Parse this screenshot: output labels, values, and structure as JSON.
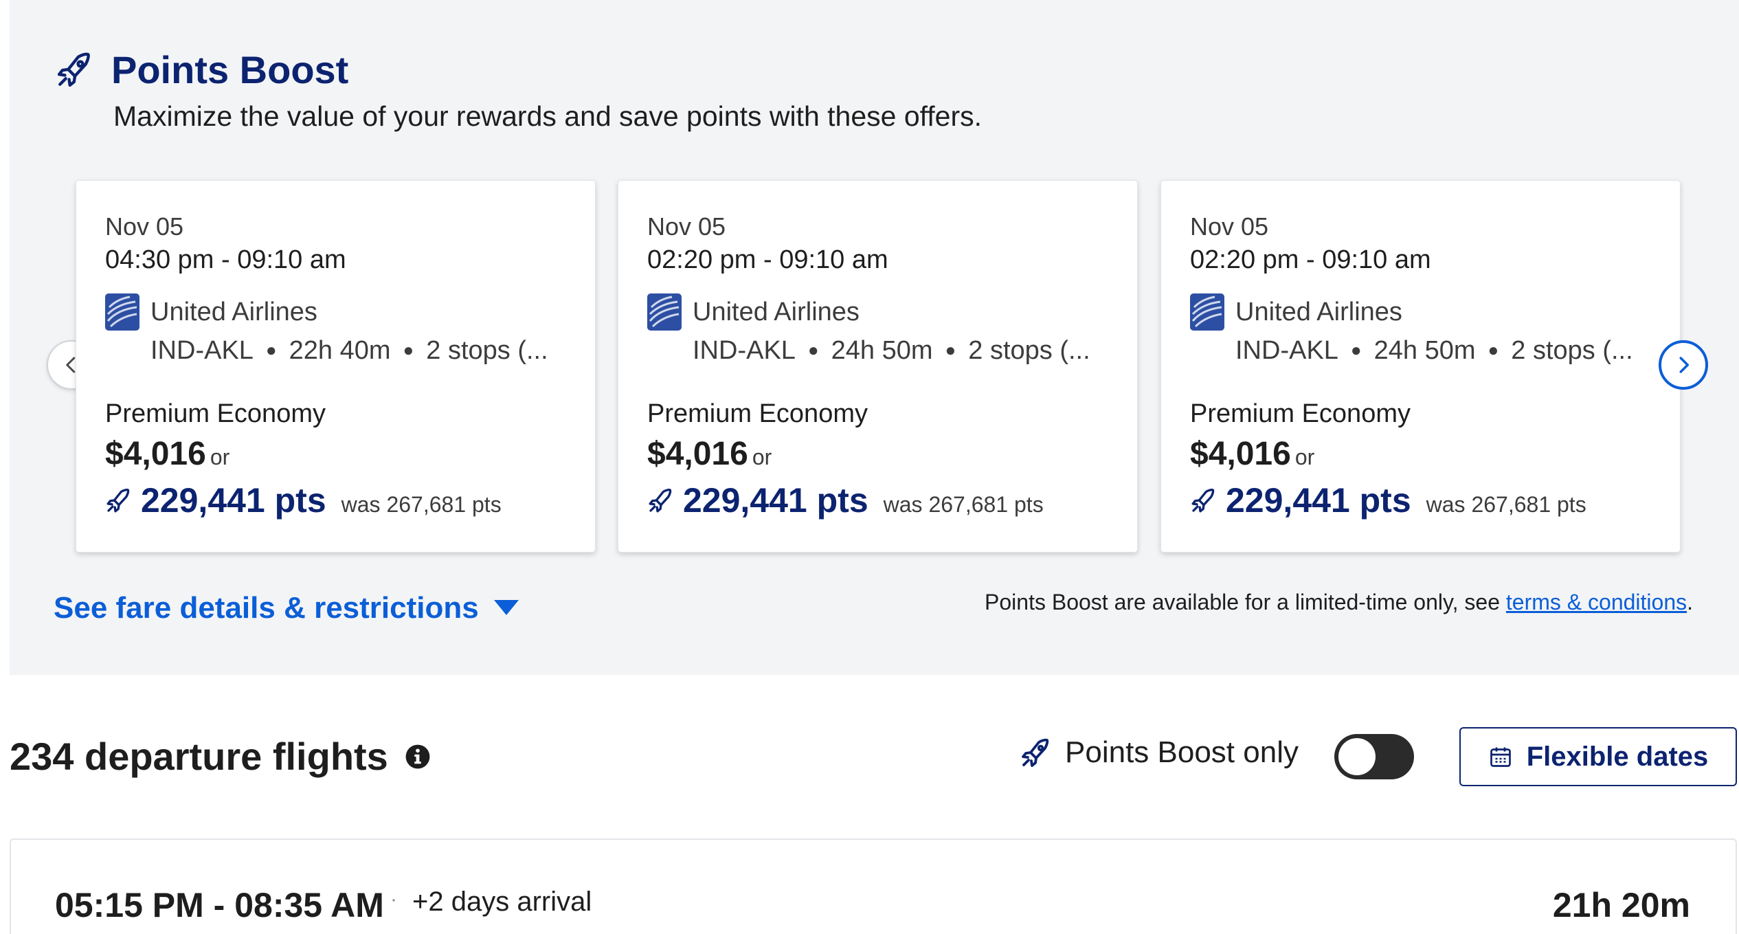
{
  "points_boost": {
    "title": "Points Boost",
    "subtitle": "Maximize the value of your rewards and save points with these offers.",
    "icon": "rocket-icon",
    "cards": [
      {
        "date": "Nov 05",
        "times": "04:30 pm - 09:10 am",
        "airline": "United Airlines",
        "route": "IND-AKL",
        "duration": "22h 40m",
        "stops": "2 stops (...",
        "cabin": "Premium Economy",
        "price": "$4,016",
        "or": "or",
        "points": "229,441 pts",
        "was": "was 267,681 pts"
      },
      {
        "date": "Nov 05",
        "times": "02:20 pm - 09:10 am",
        "airline": "United Airlines",
        "route": "IND-AKL",
        "duration": "24h 50m",
        "stops": "2 stops (...",
        "cabin": "Premium Economy",
        "price": "$4,016",
        "or": "or",
        "points": "229,441 pts",
        "was": "was 267,681 pts"
      },
      {
        "date": "Nov 05",
        "times": "02:20 pm - 09:10 am",
        "airline": "United Airlines",
        "route": "IND-AKL",
        "duration": "24h 50m",
        "stops": "2 stops (...",
        "cabin": "Premium Economy",
        "price": "$4,016",
        "or": "or",
        "points": "229,441 pts",
        "was": "was 267,681 pts"
      }
    ],
    "fare_details_link": "See fare details & restrictions",
    "disclaimer_text": "Points Boost are available for a limited-time only, see ",
    "terms_link": "terms & conditions",
    "disclaimer_end": "."
  },
  "results": {
    "count_label": "234 departure flights",
    "boost_only_label": "Points Boost only",
    "boost_only_toggle": "off",
    "flexible_dates_label": "Flexible dates",
    "first_flight": {
      "time_range": "05:15 PM - 08:35 AM",
      "separator": "·",
      "arrival_note": "+2 days arrival",
      "duration": "21h 20m"
    }
  },
  "colors": {
    "brand_navy": "#0c2370",
    "link_blue": "#0b5ed7",
    "panel_bg": "#f3f4f6"
  }
}
